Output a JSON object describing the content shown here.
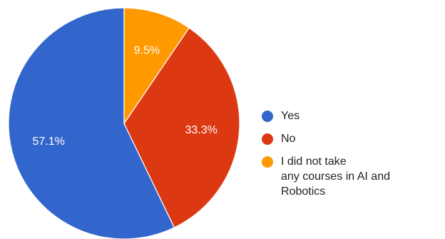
{
  "chart_data": {
    "type": "pie",
    "slices": [
      {
        "label": "Yes",
        "value": 57.1,
        "display": "57.1%",
        "color": "#3366cc"
      },
      {
        "label": "No",
        "value": 33.3,
        "display": "33.3%",
        "color": "#dc3912"
      },
      {
        "label": "I did not take\n any courses in AI and\n Robotics",
        "value": 9.5,
        "display": "9.5%",
        "color": "#ff9900"
      }
    ],
    "start_angle_deg": 90,
    "direction": "counterclockwise",
    "legend_position": "right",
    "slice_border_color": "#ffffff"
  }
}
